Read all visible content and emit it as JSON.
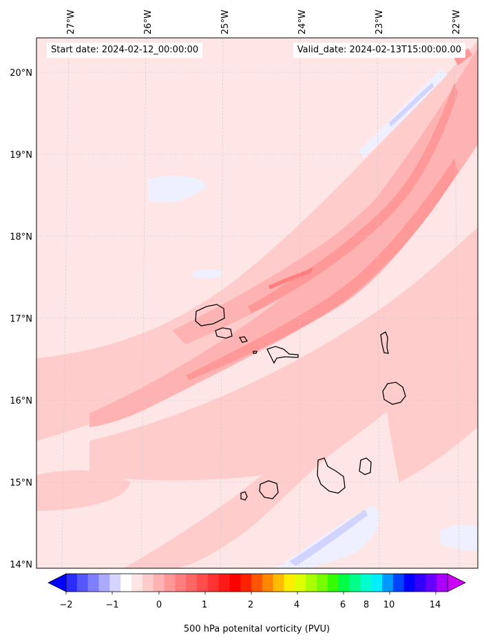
{
  "header": {
    "start_date": "Start date: 2024-02-12_00:00:00",
    "valid_date": "Valid_date: 2024-02-13T15:00:00.00"
  },
  "map": {
    "lon_labels": [
      "27°W",
      "26°W",
      "25°W",
      "24°W",
      "23°W",
      "22°W"
    ],
    "lat_labels": [
      "20°N",
      "19°N",
      "18°N",
      "17°N",
      "16°N",
      "15°N",
      "14°N"
    ],
    "gridlines": true
  },
  "colorbar": {
    "title": "500 hPa potenital vorticity (PVU)",
    "tick_labels": [
      "−2",
      "−1",
      "0",
      "1",
      "2",
      "4",
      "6",
      "8",
      "10",
      "14"
    ],
    "extend": "both",
    "colors": [
      "#0000ff",
      "#2b2bff",
      "#5656ff",
      "#8080ff",
      "#aaaaff",
      "#d4d4ff",
      "#ffffff",
      "#ffe5e5",
      "#ffcccc",
      "#ffb2b2",
      "#ff9999",
      "#ff7f7f",
      "#ff6666",
      "#ff4c4c",
      "#ff3333",
      "#ff1a1a",
      "#ff0000",
      "#ff2200",
      "#ff5500",
      "#ff8800",
      "#ffbb00",
      "#ffee00",
      "#ddff00",
      "#aaff00",
      "#77ff00",
      "#33ff00",
      "#00ff44",
      "#00ff88",
      "#00ffcc",
      "#00eeff",
      "#0099ff",
      "#0044ff",
      "#0000ff",
      "#3300ff",
      "#6600ff",
      "#aa00ff",
      "#cc00ff"
    ]
  },
  "palette": {
    "faint_red": "#ffe6e6",
    "light_red": "#ffcccc",
    "mid_red": "#ffb2b2",
    "red": "#ff9999",
    "strong_red": "#ff7f7f",
    "light_blue": "#eef0ff",
    "blue": "#d0d4ff",
    "coast": "#000000"
  }
}
